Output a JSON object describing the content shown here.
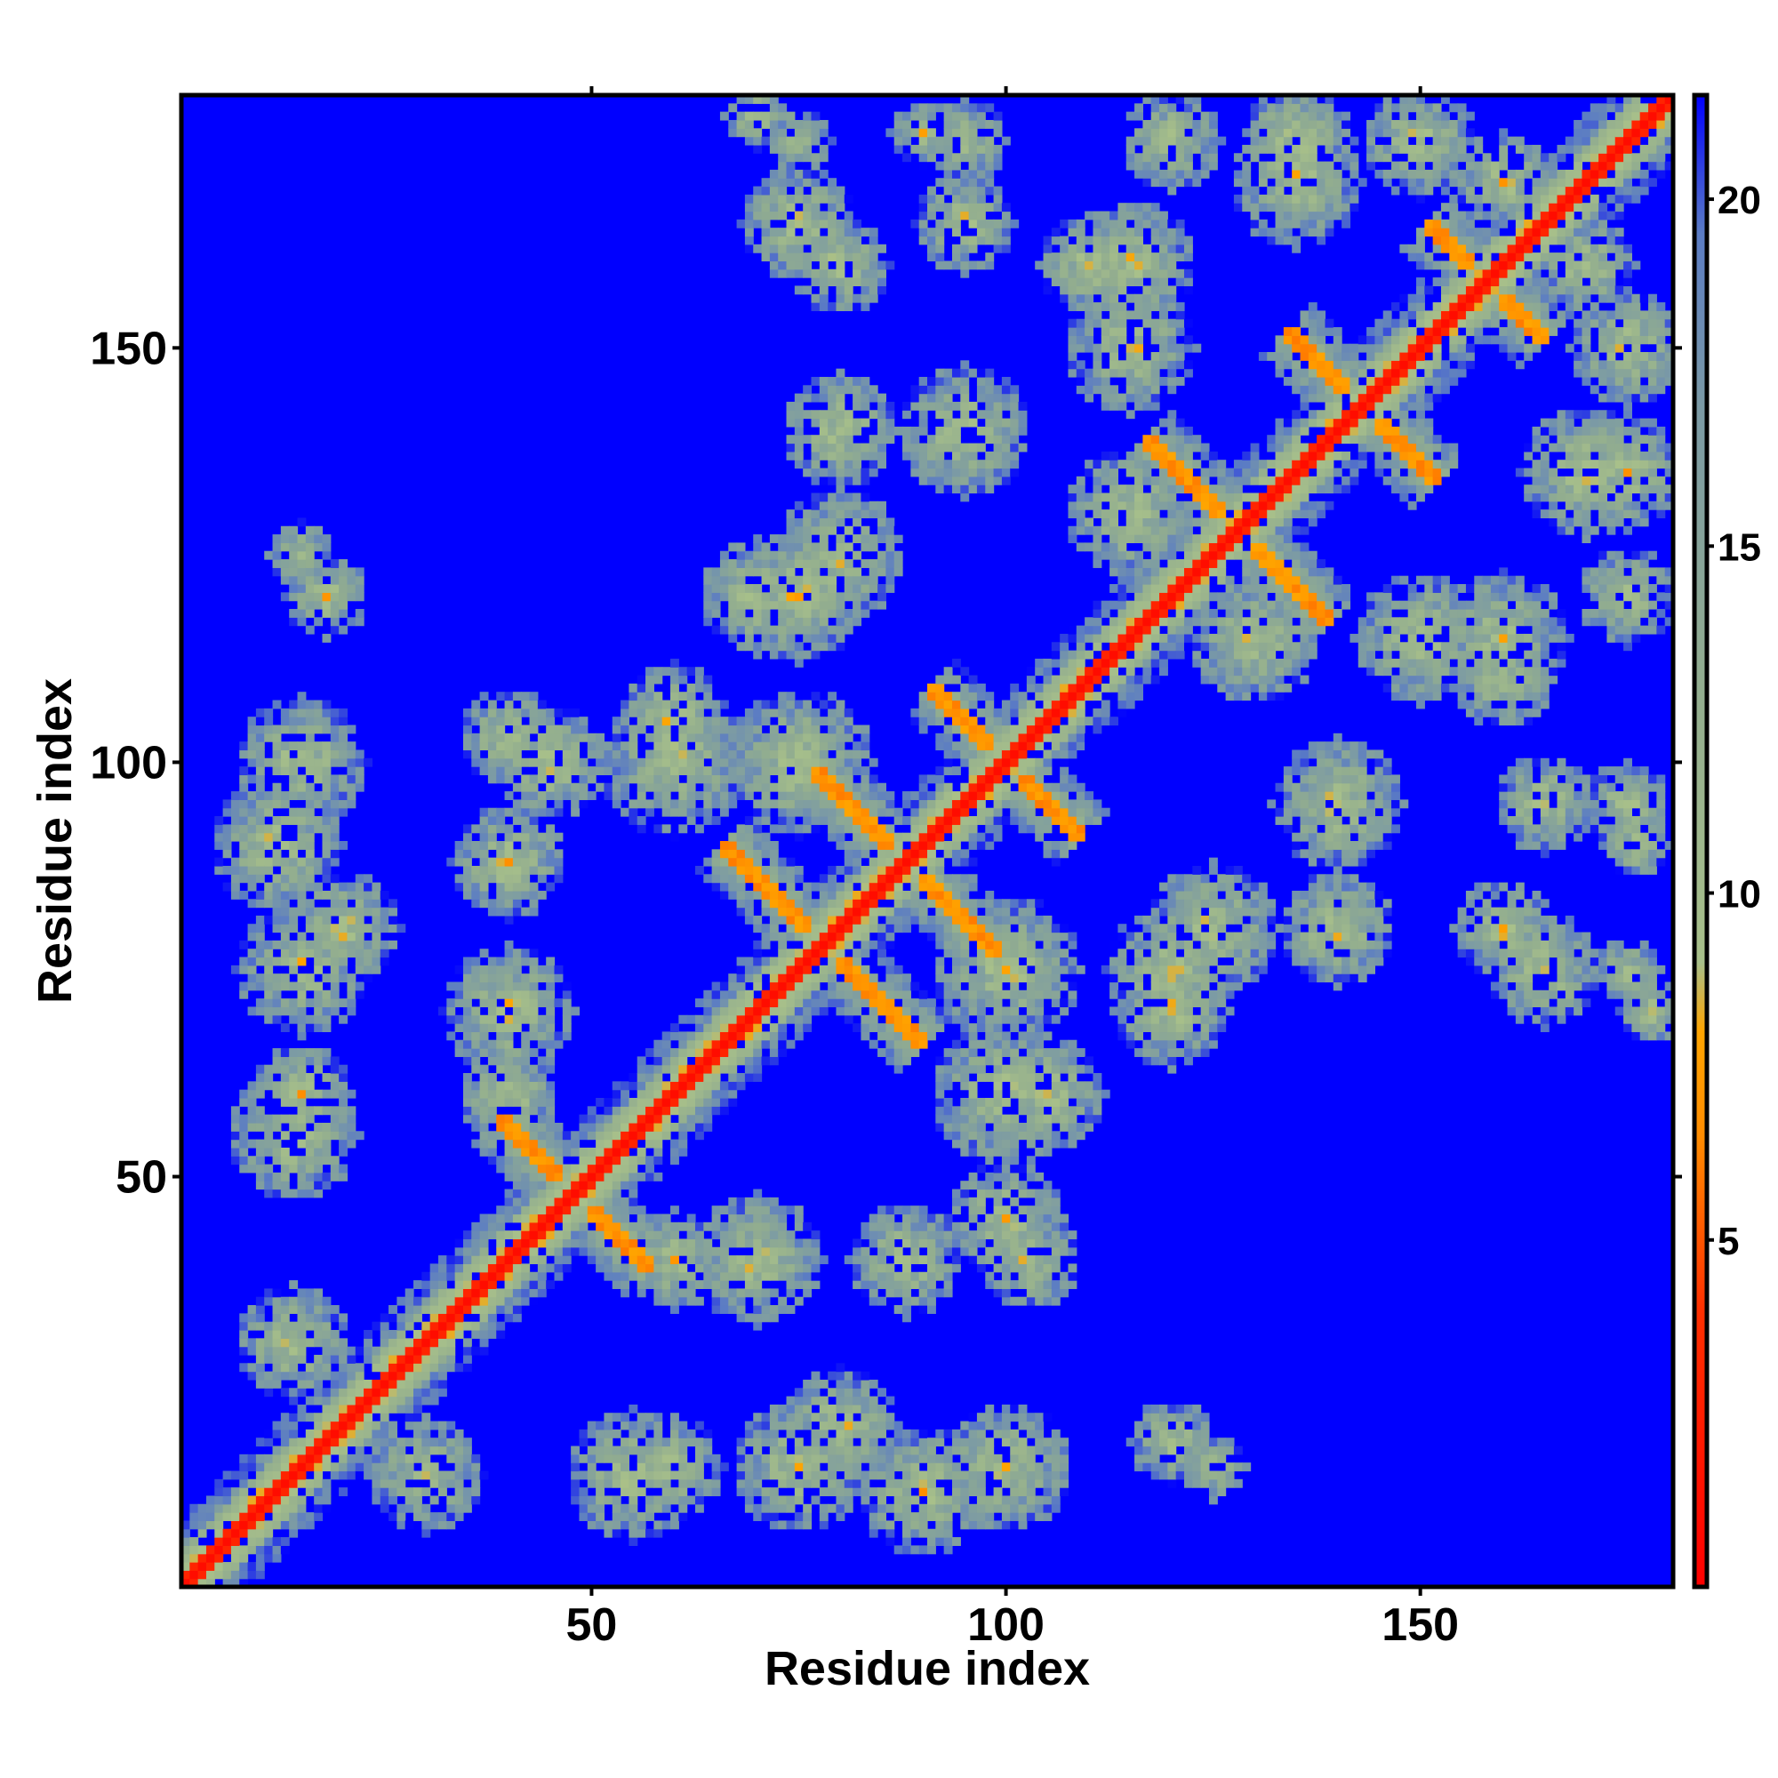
{
  "chart_data": {
    "type": "heatmap",
    "title": "",
    "xlabel": "Residue index",
    "ylabel": "Residue index",
    "n_residues": 180,
    "x_range": [
      1,
      180
    ],
    "y_range": [
      1,
      180
    ],
    "x_ticks": [
      50,
      100,
      150
    ],
    "y_ticks": [
      50,
      100,
      150
    ],
    "grid": false,
    "colorbar": {
      "position": "right",
      "range": [
        0,
        21.5
      ],
      "ticks": [
        5,
        10,
        15,
        20
      ],
      "stops": [
        {
          "value": 0,
          "color": "#ff0000"
        },
        {
          "value": 4,
          "color": "#ff3000"
        },
        {
          "value": 6.5,
          "color": "#ff8c00"
        },
        {
          "value": 8,
          "color": "#ffa500"
        },
        {
          "value": 9,
          "color": "#a8c08a"
        },
        {
          "value": 13,
          "color": "#92ad8f"
        },
        {
          "value": 17,
          "color": "#7b9aa5"
        },
        {
          "value": 19.5,
          "color": "#5b7cc4"
        },
        {
          "value": 21.5,
          "color": "#0000ff"
        }
      ]
    },
    "background_value": 21.5,
    "background_color": "#0000ff",
    "structure": {
      "description_of_values": "residue–residue distance map; diagonal ~0, contacts shown as low values",
      "antiparallel_contacts": [
        {
          "center": [
            48,
            48
          ],
          "halflen": 9
        },
        {
          "center": [
            88,
            88
          ],
          "halflen": 11
        },
        {
          "center": [
            78,
            78
          ],
          "halflen": 12
        },
        {
          "center": [
            100,
            100
          ],
          "halflen": 9
        },
        {
          "center": [
            128,
            128
          ],
          "halflen": 11
        },
        {
          "center": [
            143,
            143
          ],
          "halflen": 9
        },
        {
          "center": [
            158,
            158
          ],
          "halflen": 7
        }
      ],
      "contact_blobs": [
        {
          "x": 30,
          "y": 14,
          "r": 7
        },
        {
          "x": 55,
          "y": 14,
          "r": 8
        },
        {
          "x": 75,
          "y": 15,
          "r": 8
        },
        {
          "x": 90,
          "y": 12,
          "r": 8
        },
        {
          "x": 70,
          "y": 40,
          "r": 8
        },
        {
          "x": 88,
          "y": 40,
          "r": 7
        },
        {
          "x": 103,
          "y": 40,
          "r": 6
        },
        {
          "x": 45,
          "y": 100,
          "r": 7
        },
        {
          "x": 15,
          "y": 100,
          "r": 8
        },
        {
          "x": 20,
          "y": 80,
          "r": 7
        },
        {
          "x": 15,
          "y": 60,
          "r": 6
        },
        {
          "x": 18,
          "y": 120,
          "r": 5
        },
        {
          "x": 40,
          "y": 60,
          "r": 6
        },
        {
          "x": 60,
          "y": 100,
          "r": 9
        },
        {
          "x": 75,
          "y": 120,
          "r": 8
        },
        {
          "x": 75,
          "y": 165,
          "r": 7
        },
        {
          "x": 95,
          "y": 165,
          "r": 6
        },
        {
          "x": 100,
          "y": 75,
          "r": 9
        },
        {
          "x": 105,
          "y": 60,
          "r": 7
        },
        {
          "x": 120,
          "y": 70,
          "r": 7
        },
        {
          "x": 125,
          "y": 80,
          "r": 8
        },
        {
          "x": 140,
          "y": 80,
          "r": 7
        },
        {
          "x": 140,
          "y": 95,
          "r": 8
        },
        {
          "x": 160,
          "y": 80,
          "r": 6
        },
        {
          "x": 150,
          "y": 115,
          "r": 8
        },
        {
          "x": 160,
          "y": 110,
          "r": 6
        },
        {
          "x": 115,
          "y": 160,
          "r": 8
        },
        {
          "x": 135,
          "y": 175,
          "r": 7
        },
        {
          "x": 150,
          "y": 175,
          "r": 7
        },
        {
          "x": 170,
          "y": 135,
          "r": 8
        },
        {
          "x": 175,
          "y": 120,
          "r": 6
        },
        {
          "x": 175,
          "y": 95,
          "r": 5
        },
        {
          "x": 175,
          "y": 75,
          "r": 4
        },
        {
          "x": 115,
          "y": 130,
          "r": 8
        },
        {
          "x": 170,
          "y": 160,
          "r": 6
        },
        {
          "x": 125,
          "y": 15,
          "r": 4
        },
        {
          "x": 70,
          "y": 178,
          "r": 4
        },
        {
          "x": 90,
          "y": 176,
          "r": 4
        }
      ]
    }
  }
}
